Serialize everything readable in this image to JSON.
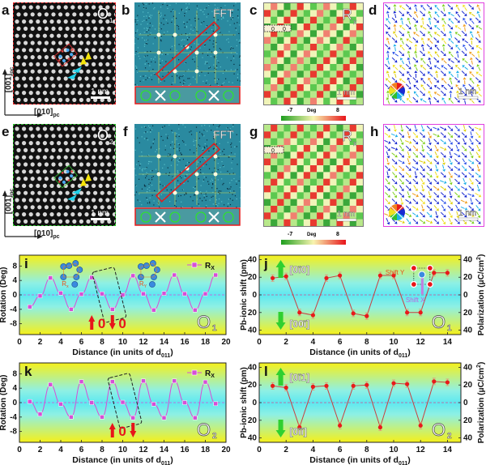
{
  "panels_top": {
    "a": {
      "label": "a",
      "tag": "O",
      "tag_sub": "1",
      "scale": "1 nm",
      "border_color": "#e8282a"
    },
    "b": {
      "label": "b",
      "tag": "FFT"
    },
    "c": {
      "label": "c",
      "tag": "R",
      "tag_sub": "x",
      "scale": "1 nm",
      "inset": [
        "0",
        "0"
      ]
    },
    "d": {
      "label": "d",
      "scale": "1 nm",
      "border_color": "#e040e0"
    },
    "e": {
      "label": "e",
      "tag": "O",
      "tag_sub": "2",
      "scale": "1 nm",
      "border_color": "#2ec42e"
    },
    "f": {
      "label": "f",
      "tag": "FFT"
    },
    "g": {
      "label": "g",
      "tag": "R",
      "tag_sub": "x",
      "scale": "1 nm",
      "inset": [
        "0"
      ]
    },
    "h": {
      "label": "h",
      "scale": "1 nm",
      "border_color": "#e040e0"
    }
  },
  "colorbar": {
    "min_label": "-7",
    "mid_label": "Deg",
    "max_label": "8",
    "low_color": "#1e9e1e",
    "mid_color": "#f8f4b0",
    "high_color": "#e8141a"
  },
  "axes_dir": {
    "vertical": "[001]",
    "horizontal": "[010]",
    "sub": "pc"
  },
  "chart_data": [
    {
      "id": "i",
      "type": "line",
      "panel_label": "i",
      "title": "",
      "xlabel": "Distance (in units of d",
      "xlabel_sub": "011",
      "ylabel": "Rotation (Deg)",
      "xlim": [
        0,
        20
      ],
      "ylim": [
        -11,
        11
      ],
      "xticks": [
        0,
        2,
        4,
        6,
        8,
        10,
        12,
        14,
        16,
        18,
        20
      ],
      "yticks": [
        -8,
        -4,
        0,
        4,
        8
      ],
      "legend": {
        "label": "R",
        "sub": "X",
        "position": "top-right"
      },
      "tag": "O",
      "tag_sub": "1",
      "annotations": [
        "0",
        "0"
      ],
      "inset_labels": [
        "R",
        "x",
        "R",
        "Y"
      ],
      "series": [
        {
          "name": "Rx",
          "color": "#d64fd6",
          "x": [
            1,
            2,
            3,
            4,
            5,
            6,
            7,
            8,
            9,
            10,
            11,
            12,
            13,
            14,
            15,
            16,
            17,
            18,
            19
          ],
          "values": [
            -3.3,
            -0.3,
            4.7,
            0.5,
            -4.0,
            0.2,
            4.8,
            0.3,
            -4.0,
            0.0,
            5.3,
            0.3,
            -4.2,
            0.4,
            5.5,
            0.3,
            -4.2,
            0.3,
            5.5
          ]
        }
      ]
    },
    {
      "id": "j",
      "type": "line",
      "panel_label": "j",
      "xlabel": "Distance (in units of d",
      "xlabel_sub": "011",
      "ylabel": "Pb-ionic shift (pm)",
      "ylabel_right": "Polarization (μC/cm",
      "ylabel_right_sup": "2",
      "xlim": [
        0,
        15
      ],
      "ylim": [
        -45,
        45
      ],
      "xticks": [
        0,
        2,
        4,
        6,
        8,
        10,
        12,
        14
      ],
      "yticks": [
        -40,
        -20,
        0,
        20,
        40
      ],
      "ytick_labels": [
        "40",
        "20",
        "0",
        "20",
        "40"
      ],
      "yticks_right_labels": [
        "40",
        "20",
        "0",
        "20",
        "40"
      ],
      "dir_up": "[0ī0]",
      "dir_down": "[00ī]",
      "tag": "O",
      "tag_sub": "1",
      "inset_labels": [
        "Shift Y",
        "Shift X"
      ],
      "series": [
        {
          "name": "Pb shift",
          "color": "#e81a1a",
          "x": [
            1,
            2,
            3,
            4,
            5,
            6,
            7,
            8,
            9,
            10,
            11,
            12,
            13,
            14
          ],
          "values": [
            19,
            21,
            -20,
            -23,
            19,
            22,
            -21,
            -24,
            22,
            22,
            -20,
            -20,
            25,
            25
          ]
        }
      ]
    },
    {
      "id": "k",
      "type": "line",
      "panel_label": "k",
      "xlabel": "Distance (in units of d",
      "xlabel_sub": "011",
      "ylabel": "Rotation (Deg)",
      "xlim": [
        0,
        20
      ],
      "ylim": [
        -11,
        11
      ],
      "xticks": [
        0,
        2,
        4,
        6,
        8,
        10,
        12,
        14,
        16,
        18,
        20
      ],
      "yticks": [
        -8,
        -4,
        0,
        4,
        8
      ],
      "legend": {
        "label": "R",
        "sub": "X",
        "position": "top-right"
      },
      "tag": "O",
      "tag_sub": "2",
      "annotations": [
        "0"
      ],
      "series": [
        {
          "name": "Rx",
          "color": "#d64fd6",
          "x": [
            1,
            2,
            3,
            4,
            5,
            6,
            7,
            8,
            9,
            10,
            11,
            12,
            13,
            14,
            15,
            16,
            17,
            18,
            19
          ],
          "values": [
            0.3,
            -3.2,
            5.0,
            -0.4,
            -4.0,
            5.8,
            0.0,
            -4.0,
            5.8,
            0.1,
            -4.2,
            6.0,
            -0.4,
            -4.2,
            6.0,
            0.0,
            -4.2,
            5.7,
            -0.3
          ]
        }
      ]
    },
    {
      "id": "l",
      "type": "line",
      "panel_label": "l",
      "xlabel": "Distance (in units of d",
      "xlabel_sub": "011",
      "ylabel": "Pb-ionic shift (pm)",
      "ylabel_right": "Polarization (μC/cm",
      "ylabel_right_sup": "2",
      "xlim": [
        0,
        15
      ],
      "ylim": [
        -45,
        45
      ],
      "xticks": [
        0,
        2,
        4,
        6,
        8,
        10,
        12,
        14
      ],
      "yticks": [
        -40,
        -20,
        0,
        20,
        40
      ],
      "ytick_labels": [
        "40",
        "20",
        "0",
        "20",
        "40"
      ],
      "yticks_right_labels": [
        "40",
        "20",
        "0",
        "20",
        "40"
      ],
      "dir_up": "[0ī1]",
      "dir_down": "[0īī]",
      "tag": "O",
      "tag_sub": "2",
      "series": [
        {
          "name": "Pb shift",
          "color": "#e81a1a",
          "x": [
            1,
            2,
            3,
            4,
            5,
            6,
            7,
            8,
            9,
            10,
            11,
            12,
            13,
            14
          ],
          "values": [
            19,
            17,
            -28,
            18,
            19,
            -26,
            19,
            20,
            -28,
            22,
            21,
            -26,
            24,
            23
          ]
        }
      ]
    }
  ]
}
